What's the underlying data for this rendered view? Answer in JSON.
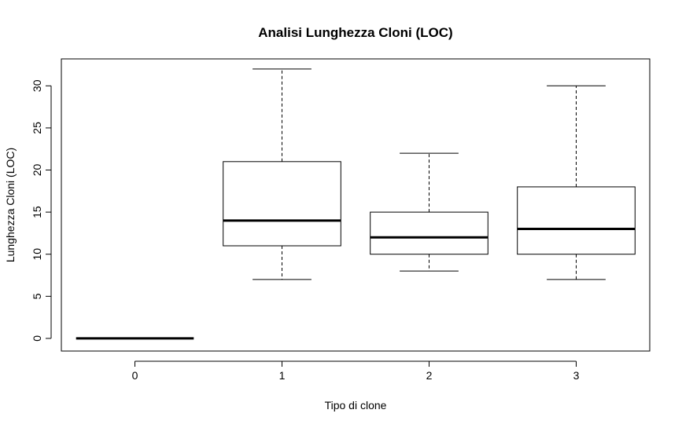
{
  "chart_data": {
    "type": "boxplot",
    "title": "Analisi Lunghezza Cloni (LOC)",
    "xlabel": "Tipo di clone",
    "ylabel": "Lunghezza Cloni (LOC)",
    "categories": [
      "0",
      "1",
      "2",
      "3"
    ],
    "ylim": [
      -1.5,
      33.2
    ],
    "yticks": [
      "0",
      "5",
      "10",
      "15",
      "20",
      "25",
      "30"
    ],
    "boxes": [
      {
        "category": "0",
        "min": 0,
        "q1": 0,
        "median": 0,
        "q3": 0,
        "max": 0
      },
      {
        "category": "1",
        "min": 7,
        "q1": 11,
        "median": 14,
        "q3": 21,
        "max": 32
      },
      {
        "category": "2",
        "min": 8,
        "q1": 10,
        "median": 12,
        "q3": 15,
        "max": 22
      },
      {
        "category": "3",
        "min": 7,
        "q1": 10,
        "median": 13,
        "q3": 18,
        "max": 30
      }
    ],
    "grid": false,
    "colors": {
      "box_fill": "#ffffff",
      "line": "#000000"
    }
  }
}
